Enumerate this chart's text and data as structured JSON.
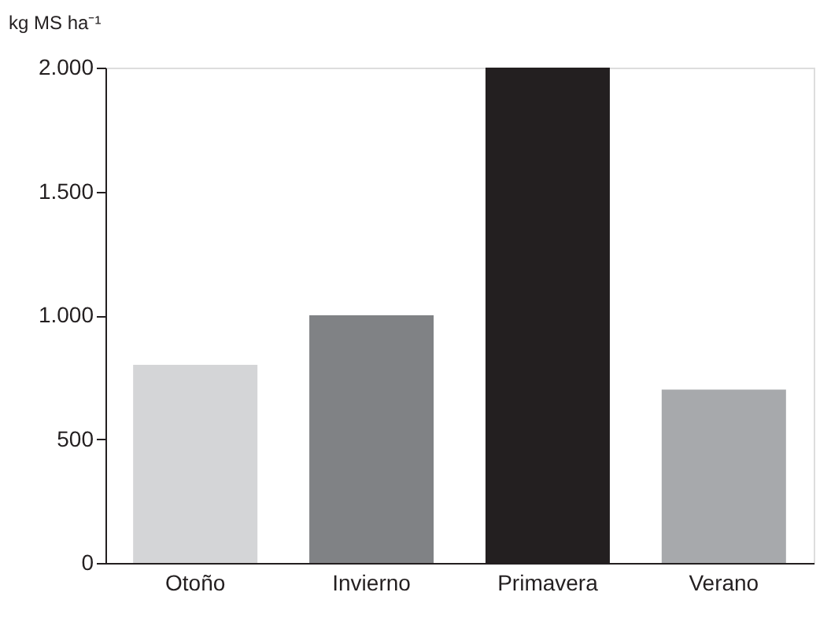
{
  "chart_data": {
    "type": "bar",
    "ylabel": "kg MS ha⁻¹",
    "categories": [
      "Otoño",
      "Invierno",
      "Primavera",
      "Verano"
    ],
    "values": [
      800,
      1000,
      2000,
      700
    ],
    "colors": [
      "#d4d5d7",
      "#808285",
      "#231f20",
      "#a7a9ac"
    ],
    "ylim": [
      0,
      2000
    ],
    "yticks": [
      0,
      500,
      {
        "value": 1000,
        "label": "1.000"
      },
      {
        "value": 1500,
        "label": "1.500"
      },
      {
        "value": 2000,
        "label": "2.000"
      }
    ],
    "grid": false
  }
}
